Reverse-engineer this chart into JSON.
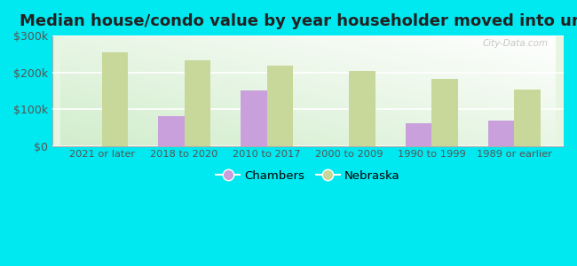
{
  "title": "Median house/condo value by year householder moved into unit",
  "categories": [
    "2021 or later",
    "2018 to 2020",
    "2010 to 2017",
    "2000 to 2009",
    "1990 to 1999",
    "1989 or earlier"
  ],
  "chambers_values": [
    null,
    80000,
    150000,
    null,
    62000,
    68000
  ],
  "nebraska_values": [
    255000,
    232000,
    218000,
    203000,
    183000,
    153000
  ],
  "chambers_color": "#c9a0dc",
  "nebraska_color": "#c8d89a",
  "background_color": "#00e8f0",
  "plot_bg_color": "#e8f5e0",
  "ylim": [
    0,
    300000
  ],
  "yticks": [
    0,
    100000,
    200000,
    300000
  ],
  "ytick_labels": [
    "$0",
    "$100k",
    "$200k",
    "$300k"
  ],
  "bar_width": 0.32,
  "title_fontsize": 13,
  "watermark": "City-Data.com",
  "legend_labels": [
    "Chambers",
    "Nebraska"
  ]
}
